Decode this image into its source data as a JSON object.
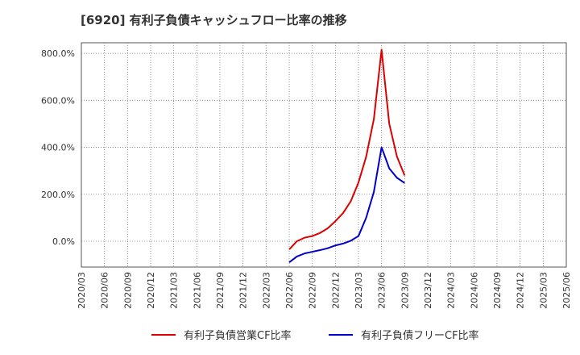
{
  "title": "[6920]  有利子負債キャッシュフロー比率の推移",
  "chart_data": {
    "type": "line",
    "title": "[6920]  有利子負債キャッシュフロー比率の推移",
    "xlabel": "",
    "ylabel": "",
    "x_ticks": [
      "2020/03",
      "2020/06",
      "2020/09",
      "2020/12",
      "2021/03",
      "2021/06",
      "2021/09",
      "2021/12",
      "2022/03",
      "2022/06",
      "2022/09",
      "2022/12",
      "2023/03",
      "2023/06",
      "2023/09",
      "2023/12",
      "2024/03",
      "2024/06",
      "2024/09",
      "2024/12",
      "2025/03",
      "2025/06"
    ],
    "y_ticks": [
      0,
      200,
      400,
      600,
      800
    ],
    "y_tick_labels": [
      "0.0%",
      "200.0%",
      "400.0%",
      "600.0%",
      "800.0%"
    ],
    "ylim": [
      -110,
      845
    ],
    "grid": true,
    "legend_position": "bottom",
    "series": [
      {
        "name": "有利子負債営業CF比率",
        "color": "#dd0000",
        "points": [
          [
            "2022/06",
            -35
          ],
          [
            "2022/07",
            0
          ],
          [
            "2022/08",
            15
          ],
          [
            "2022/09",
            22
          ],
          [
            "2022/10",
            35
          ],
          [
            "2022/11",
            55
          ],
          [
            "2022/12",
            85
          ],
          [
            "2023/01",
            120
          ],
          [
            "2023/02",
            170
          ],
          [
            "2023/03",
            250
          ],
          [
            "2023/04",
            360
          ],
          [
            "2023/05",
            520
          ],
          [
            "2023/06",
            815
          ],
          [
            "2023/07",
            500
          ],
          [
            "2023/08",
            360
          ],
          [
            "2023/09",
            280
          ]
        ]
      },
      {
        "name": "有利子負債フリーCF比率",
        "color": "#0000cc",
        "points": [
          [
            "2022/06",
            -90
          ],
          [
            "2022/07",
            -65
          ],
          [
            "2022/08",
            -52
          ],
          [
            "2022/09",
            -45
          ],
          [
            "2022/10",
            -38
          ],
          [
            "2022/11",
            -30
          ],
          [
            "2022/12",
            -18
          ],
          [
            "2023/01",
            -10
          ],
          [
            "2023/02",
            2
          ],
          [
            "2023/03",
            22
          ],
          [
            "2023/04",
            100
          ],
          [
            "2023/05",
            210
          ],
          [
            "2023/06",
            400
          ],
          [
            "2023/07",
            310
          ],
          [
            "2023/08",
            270
          ],
          [
            "2023/09",
            248
          ]
        ]
      }
    ]
  }
}
